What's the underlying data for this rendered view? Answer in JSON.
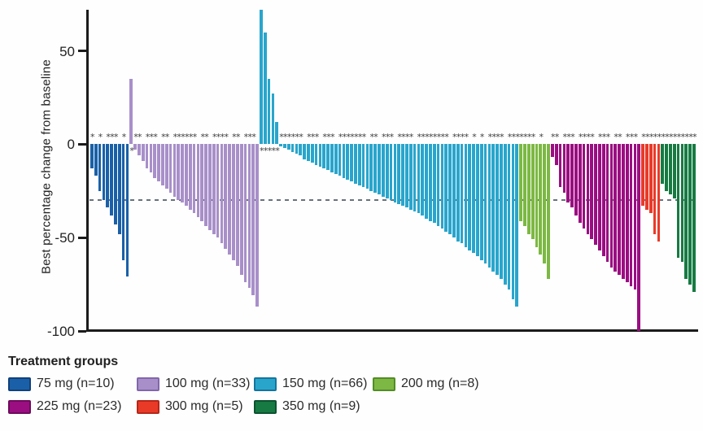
{
  "chart_data": {
    "type": "bar",
    "subtype": "waterfall",
    "title": "",
    "ylabel": "Best percentage change from baseline",
    "xlabel": "",
    "ylim": [
      -100,
      72
    ],
    "yticks": [
      {
        "label": "50",
        "value": 50
      },
      {
        "label": "0",
        "value": 0
      },
      {
        "label": "-50",
        "value": -50
      },
      {
        "label": "-100",
        "value": -100
      }
    ],
    "reference_line_value": -30,
    "grid": false,
    "legend_title": "Treatment groups",
    "legend_position": "bottom",
    "asterisk_marker_glyph": "*",
    "groups": [
      {
        "label": "75 mg",
        "n": 10,
        "legend_label": "75 mg (n=10)",
        "color": "#1a60a8",
        "border_color": "#11407a",
        "values": [
          -13,
          -17,
          -25,
          -30,
          -34,
          -38,
          -43,
          -48,
          -62,
          -71
        ],
        "asterisk_indices": [
          0,
          2,
          4,
          5,
          6,
          8
        ]
      },
      {
        "label": "100 mg",
        "n": 33,
        "legend_label": "100 mg (n=33)",
        "color": "#a88fc9",
        "border_color": "#8266ab",
        "values": [
          35,
          -3,
          -6,
          -9,
          -13,
          -15,
          -18,
          -20,
          -22,
          -24,
          -26,
          -28,
          -30,
          -31,
          -33,
          -35,
          -37,
          -39,
          -41,
          -44,
          -46,
          -48,
          -50,
          -53,
          -56,
          -59,
          -62,
          -65,
          -70,
          -74,
          -77,
          -81,
          -87
        ],
        "asterisk_indices": [
          0,
          1,
          2,
          4,
          5,
          6,
          8,
          9,
          11,
          12,
          13,
          14,
          15,
          16,
          18,
          19,
          21,
          22,
          23,
          24,
          26,
          27,
          29,
          30,
          31
        ]
      },
      {
        "label": "150 mg",
        "n": 66,
        "legend_label": "150 mg (n=66)",
        "color": "#29a5cc",
        "border_color": "#14759c",
        "values": [
          72,
          60,
          35,
          27,
          12,
          -1,
          -2,
          -3,
          -4,
          -5,
          -6,
          -8,
          -9,
          -10,
          -11,
          -12,
          -13,
          -14,
          -15,
          -16,
          -17,
          -18,
          -19,
          -20,
          -21,
          -22,
          -23,
          -24,
          -25,
          -26,
          -27,
          -28,
          -29,
          -30,
          -31,
          -32,
          -33,
          -34,
          -35,
          -36,
          -37,
          -38,
          -40,
          -41,
          -42,
          -44,
          -45,
          -47,
          -48,
          -50,
          -52,
          -53,
          -55,
          -57,
          -58,
          -60,
          -62,
          -64,
          -66,
          -68,
          -70,
          -72,
          -75,
          -78,
          -83,
          -87
        ],
        "asterisk_indices": [
          0,
          1,
          2,
          3,
          4,
          5,
          6,
          7,
          8,
          9,
          10,
          12,
          13,
          14,
          16,
          17,
          18,
          20,
          21,
          22,
          23,
          24,
          25,
          26,
          28,
          29,
          31,
          32,
          33,
          35,
          36,
          37,
          38,
          40,
          41,
          42,
          43,
          44,
          45,
          46,
          47,
          49,
          50,
          51,
          52,
          54,
          56,
          58,
          59,
          60,
          61,
          63,
          64,
          65
        ]
      },
      {
        "label": "200 mg",
        "n": 8,
        "legend_label": "200 mg (n=8)",
        "color": "#7cb843",
        "border_color": "#528c26",
        "values": [
          -41,
          -44,
          -48,
          -51,
          -55,
          -59,
          -64,
          -72
        ],
        "asterisk_indices": [
          0,
          1,
          2,
          3,
          5
        ]
      },
      {
        "label": "225 mg",
        "n": 23,
        "legend_label": "225 mg (n=23)",
        "color": "#9a0e81",
        "border_color": "#6e0a5c",
        "values": [
          -7,
          -11,
          -23,
          -26,
          -31,
          -34,
          -38,
          -42,
          -45,
          -48,
          -51,
          -54,
          -57,
          -60,
          -63,
          -66,
          -68,
          -70,
          -72,
          -74,
          -76,
          -78,
          -100
        ],
        "asterisk_indices": [
          0,
          1,
          3,
          4,
          5,
          7,
          8,
          9,
          10,
          12,
          13,
          14,
          16,
          17,
          19,
          20,
          21
        ]
      },
      {
        "label": "300 mg",
        "n": 5,
        "legend_label": "300 mg (n=5)",
        "color": "#e93a28",
        "border_color": "#b5271a",
        "values": [
          -33,
          -35,
          -37,
          -48,
          -52
        ],
        "asterisk_indices": [
          0,
          1,
          2,
          3,
          4
        ]
      },
      {
        "label": "350 mg",
        "n": 9,
        "legend_label": "350 mg (n=9)",
        "color": "#167a42",
        "border_color": "#0d5230",
        "values": [
          -21,
          -25,
          -27,
          -29,
          -61,
          -63,
          -72,
          -75,
          -79
        ],
        "asterisk_indices": [
          0,
          1,
          2,
          3,
          4,
          5,
          6,
          7,
          8
        ]
      }
    ]
  }
}
